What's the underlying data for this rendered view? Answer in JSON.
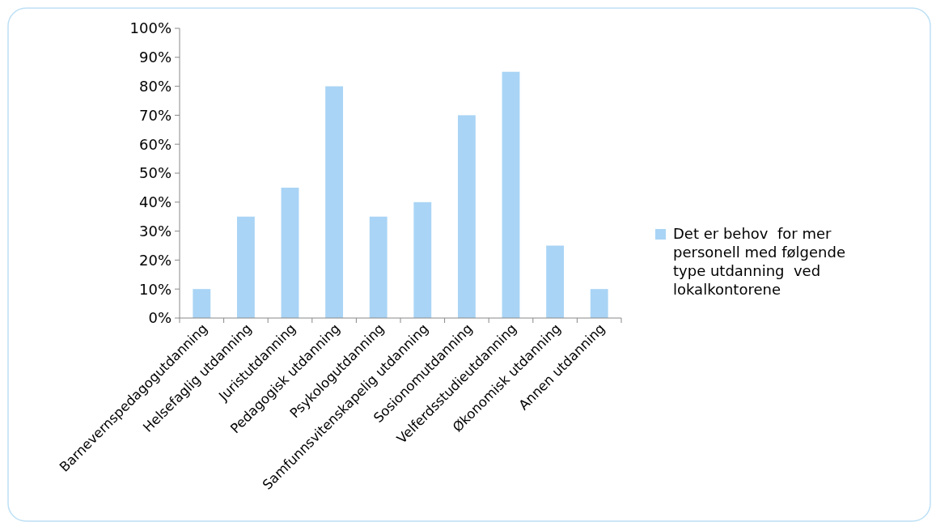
{
  "chart_data": {
    "type": "bar",
    "categories": [
      "Barnevernspedagogutdanning",
      "Helsefaglig utdanning",
      "Juristutdanning",
      "Pedagogisk utdanning",
      "Psykologutdanning",
      "Samfunnsvitenskapelig utdanning",
      "Sosionomutdanning",
      "Velferdsstudieutdanning",
      "Økonomisk utdanning",
      "Annen utdanning"
    ],
    "series": [
      {
        "name": "Det er behov  for mer personell med følgende type utdanning  ved lokalkontorene",
        "color": "#a9d4f5",
        "values": [
          10,
          35,
          45,
          80,
          35,
          40,
          70,
          85,
          25,
          10
        ]
      }
    ],
    "ylim": [
      0,
      100
    ],
    "yticks": [
      {
        "value": 0,
        "label": "0%"
      },
      {
        "value": 10,
        "label": "10%"
      },
      {
        "value": 20,
        "label": "20%"
      },
      {
        "value": 30,
        "label": "30%"
      },
      {
        "value": 40,
        "label": "40%"
      },
      {
        "value": 50,
        "label": "50%"
      },
      {
        "value": 60,
        "label": "60%"
      },
      {
        "value": 70,
        "label": "70%"
      },
      {
        "value": 80,
        "label": "80%"
      },
      {
        "value": 90,
        "label": "90%"
      },
      {
        "value": 100,
        "label": "100%"
      }
    ],
    "grid": false,
    "legend": "right"
  }
}
